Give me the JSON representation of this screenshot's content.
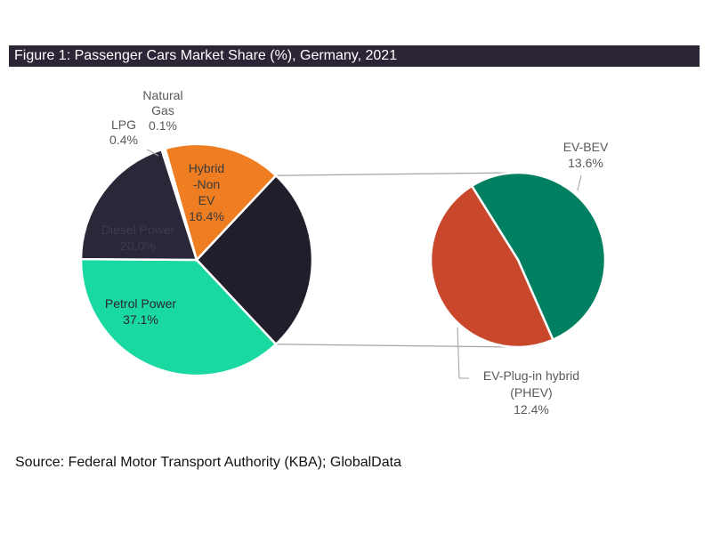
{
  "title": "Figure 1: Passenger Cars Market Share (%), Germany, 2021",
  "source": "Source: Federal Motor Transport Authority (KBA); GlobalData",
  "chart_data": {
    "type": "pie",
    "title": "Figure 1: Passenger Cars Market Share (%), Germany, 2021",
    "unit": "%",
    "slices": [
      {
        "name": "EV",
        "label_lines": [],
        "value": 26.0,
        "color": "#211d2b"
      },
      {
        "name": "Petrol Power",
        "label_lines": [
          "Petrol Power",
          "37.1%"
        ],
        "value": 37.1,
        "color": "#19d8a0"
      },
      {
        "name": "Diesel Power",
        "label_lines": [
          "Diesel Power",
          "20.0%"
        ],
        "value": 20.0,
        "color": "#2b2638"
      },
      {
        "name": "LPG",
        "label_lines": [
          "LPG",
          "0.4%"
        ],
        "value": 0.4,
        "color": "#eef0ee"
      },
      {
        "name": "Natural Gas",
        "label_lines": [
          "Natural",
          "Gas",
          "0.1%"
        ],
        "value": 0.1,
        "color": "#cfcfcf"
      },
      {
        "name": "Hybrid-Non EV",
        "label_lines": [
          "Hybrid",
          "-Non",
          "EV",
          "16.4%"
        ],
        "value": 16.4,
        "color": "#ef7d22"
      }
    ],
    "breakout": {
      "of": "EV",
      "slices": [
        {
          "name": "EV-BEV",
          "label_lines": [
            "EV-BEV",
            "13.6%"
          ],
          "value": 13.6,
          "color": "#008061"
        },
        {
          "name": "EV-Plug-in hybrid (PHEV)",
          "label_lines": [
            "EV-Plug-in hybrid",
            "(PHEV)",
            "12.4%"
          ],
          "value": 12.4,
          "color": "#c9482c"
        }
      ]
    }
  }
}
